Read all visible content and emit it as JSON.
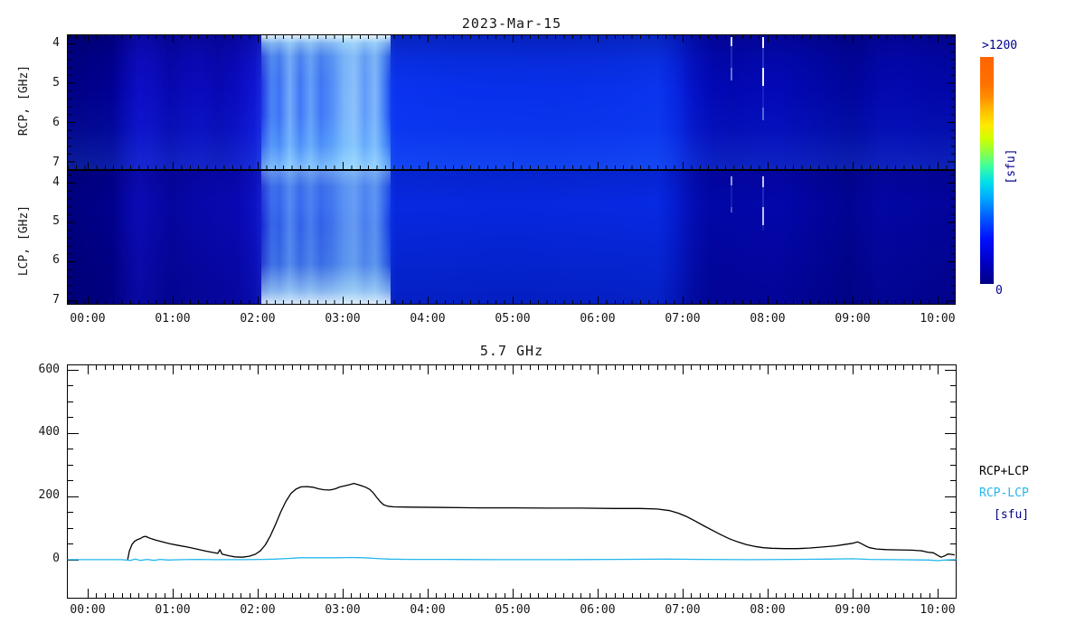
{
  "page": {
    "title": "2023-Mar-15"
  },
  "axes": {
    "time_ticks": [
      "00:00",
      "01:00",
      "02:00",
      "03:00",
      "04:00",
      "05:00",
      "06:00",
      "07:00",
      "08:00",
      "09:00",
      "10:00"
    ]
  },
  "spectrogram": {
    "panels": [
      {
        "axis_label": "RCP, [GHz]",
        "freq_ticks": [
          "4",
          "5",
          "6",
          "7"
        ]
      },
      {
        "axis_label": "LCP, [GHz]",
        "freq_ticks": [
          "4",
          "5",
          "6",
          "7"
        ]
      }
    ],
    "colorbar": {
      "max_label": ">1200",
      "min_label": "0",
      "unit_label": "[sfu]"
    }
  },
  "profile": {
    "title": "5.7 GHz",
    "flux_ticks": [
      "600",
      "400",
      "200",
      "0"
    ],
    "legend": [
      {
        "label": "RCP+LCP",
        "color": "#000000"
      },
      {
        "label": "RCP-LCP",
        "color": "#25B7EE"
      },
      {
        "label": "[sfu]",
        "color": "#00008B"
      }
    ]
  },
  "chart_data": [
    {
      "type": "heatmap",
      "title": "2023-Mar-15",
      "description": "Dynamic radio spectrum, two polarization panels (RCP top, LCP bottom), frequency 4-7 GHz increasing downward, time 00:00-10:13 UT",
      "ylabel_top": "RCP, [GHz]",
      "ylabel_bottom": "LCP, [GHz]",
      "freq_ticks_ghz": [
        4,
        5,
        6,
        7
      ],
      "time_ticks_hours": [
        0,
        1,
        2,
        3,
        4,
        5,
        6,
        7,
        8,
        9,
        10
      ],
      "colorbar": {
        "min": 0,
        "max_label": ">1200",
        "unit": "sfu",
        "palette": "rainbow (navy-blue-cyan-green-yellow-orange)"
      },
      "visible_features": [
        "faint brighter band 00:30-01:50",
        "bright burst band 02:10-03:30 with vertical striations, brightest near 4 GHz in RCP and near 7 GHz in both panels",
        "moderate plateau emission 03:30-06:50",
        "decay to background by 07:15",
        "thin bright calibration streaks near 07:35 and 07:55",
        "slightly darker band near 09:00"
      ]
    },
    {
      "type": "line",
      "title": "5.7 GHz",
      "ylabel_unit": "[sfu]",
      "xlim_hours": [
        -0.245,
        10.223
      ],
      "ylim": [
        -123,
        617
      ],
      "x_tick_range": [
        0,
        10
      ],
      "x_major_step": 1,
      "x_minor_step": 0.1,
      "y_tick_range": [
        0,
        600
      ],
      "y_major_step": 200,
      "y_minor_step": 50,
      "grid": false,
      "legend_position": "right-outside",
      "series": [
        {
          "name": "RCP+LCP",
          "color": "#000000",
          "points": [
            [
              0.47,
              0
            ],
            [
              0.49,
              28
            ],
            [
              0.52,
              48
            ],
            [
              0.55,
              58
            ],
            [
              0.58,
              63
            ],
            [
              0.62,
              67
            ],
            [
              0.65,
              72
            ],
            [
              0.68,
              74
            ],
            [
              0.71,
              70
            ],
            [
              0.75,
              66
            ],
            [
              0.8,
              62
            ],
            [
              0.88,
              56
            ],
            [
              0.97,
              50
            ],
            [
              1.07,
              45
            ],
            [
              1.17,
              40
            ],
            [
              1.28,
              34
            ],
            [
              1.38,
              28
            ],
            [
              1.47,
              23
            ],
            [
              1.53,
              20
            ],
            [
              1.555,
              32
            ],
            [
              1.58,
              18
            ],
            [
              1.65,
              13
            ],
            [
              1.73,
              9
            ],
            [
              1.82,
              8
            ],
            [
              1.9,
              11
            ],
            [
              1.97,
              17
            ],
            [
              2.03,
              28
            ],
            [
              2.09,
              47
            ],
            [
              2.15,
              76
            ],
            [
              2.21,
              112
            ],
            [
              2.27,
              150
            ],
            [
              2.33,
              184
            ],
            [
              2.39,
              209
            ],
            [
              2.45,
              223
            ],
            [
              2.51,
              230
            ],
            [
              2.58,
              231
            ],
            [
              2.65,
              229
            ],
            [
              2.72,
              224
            ],
            [
              2.78,
              221
            ],
            [
              2.85,
              220
            ],
            [
              2.91,
              224
            ],
            [
              2.97,
              230
            ],
            [
              3.03,
              234
            ],
            [
              3.08,
              237
            ],
            [
              3.13,
              241
            ],
            [
              3.17,
              238
            ],
            [
              3.22,
              234
            ],
            [
              3.27,
              229
            ],
            [
              3.32,
              222
            ],
            [
              3.36,
              211
            ],
            [
              3.4,
              197
            ],
            [
              3.44,
              184
            ],
            [
              3.48,
              174
            ],
            [
              3.53,
              169
            ],
            [
              3.6,
              167
            ],
            [
              3.8,
              166
            ],
            [
              4.2,
              165
            ],
            [
              4.6,
              164
            ],
            [
              5.0,
              164
            ],
            [
              5.4,
              163
            ],
            [
              5.8,
              163
            ],
            [
              6.2,
              162
            ],
            [
              6.5,
              162
            ],
            [
              6.7,
              160
            ],
            [
              6.85,
              155
            ],
            [
              6.95,
              147
            ],
            [
              7.05,
              136
            ],
            [
              7.15,
              122
            ],
            [
              7.25,
              107
            ],
            [
              7.35,
              93
            ],
            [
              7.45,
              79
            ],
            [
              7.55,
              66
            ],
            [
              7.65,
              56
            ],
            [
              7.75,
              48
            ],
            [
              7.85,
              42
            ],
            [
              7.95,
              38
            ],
            [
              8.05,
              36
            ],
            [
              8.2,
              35
            ],
            [
              8.35,
              35
            ],
            [
              8.5,
              37
            ],
            [
              8.65,
              40
            ],
            [
              8.8,
              44
            ],
            [
              8.9,
              48
            ],
            [
              9.0,
              52
            ],
            [
              9.06,
              56
            ],
            [
              9.1,
              51
            ],
            [
              9.15,
              44
            ],
            [
              9.2,
              38
            ],
            [
              9.28,
              34
            ],
            [
              9.4,
              32
            ],
            [
              9.55,
              31
            ],
            [
              9.7,
              30
            ],
            [
              9.82,
              28
            ],
            [
              9.88,
              24
            ],
            [
              9.95,
              22
            ],
            [
              10.0,
              14
            ],
            [
              10.04,
              8
            ],
            [
              10.08,
              12
            ],
            [
              10.12,
              18
            ],
            [
              10.16,
              17
            ],
            [
              10.2,
              15
            ]
          ]
        },
        {
          "name": "RCP-LCP",
          "color": "#25B7EE",
          "points": [
            [
              -0.24,
              0
            ],
            [
              0.4,
              0
            ],
            [
              0.5,
              -2
            ],
            [
              0.56,
              2
            ],
            [
              0.62,
              -2
            ],
            [
              0.7,
              1
            ],
            [
              0.78,
              -2
            ],
            [
              0.85,
              1
            ],
            [
              0.95,
              -1
            ],
            [
              1.1,
              0
            ],
            [
              1.3,
              1
            ],
            [
              1.5,
              0
            ],
            [
              1.8,
              0
            ],
            [
              2.05,
              1
            ],
            [
              2.2,
              2
            ],
            [
              2.35,
              4
            ],
            [
              2.5,
              6
            ],
            [
              2.7,
              6
            ],
            [
              2.9,
              6
            ],
            [
              3.1,
              7
            ],
            [
              3.25,
              6
            ],
            [
              3.4,
              4
            ],
            [
              3.55,
              2
            ],
            [
              3.8,
              1
            ],
            [
              4.2,
              1
            ],
            [
              4.8,
              0
            ],
            [
              5.5,
              0
            ],
            [
              6.2,
              1
            ],
            [
              6.8,
              2
            ],
            [
              7.2,
              1
            ],
            [
              7.8,
              0
            ],
            [
              8.3,
              1
            ],
            [
              8.7,
              2
            ],
            [
              9.0,
              3
            ],
            [
              9.2,
              1
            ],
            [
              9.5,
              0
            ],
            [
              9.9,
              -1
            ],
            [
              10.0,
              -3
            ],
            [
              10.08,
              -1
            ],
            [
              10.22,
              0
            ]
          ]
        }
      ]
    }
  ]
}
